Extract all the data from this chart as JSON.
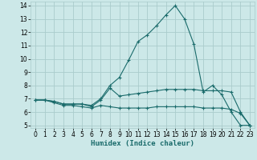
{
  "xlabel": "Humidex (Indice chaleur)",
  "bg_color": "#cce8e8",
  "grid_color": "#aacccc",
  "line_color": "#1a6b6b",
  "xlim": [
    -0.5,
    23.5
  ],
  "ylim": [
    4.8,
    14.3
  ],
  "xticks": [
    0,
    1,
    2,
    3,
    4,
    5,
    6,
    7,
    8,
    9,
    10,
    11,
    12,
    13,
    14,
    15,
    16,
    17,
    18,
    19,
    20,
    21,
    22,
    23
  ],
  "yticks": [
    5,
    6,
    7,
    8,
    9,
    10,
    11,
    12,
    13,
    14
  ],
  "line1_x": [
    0,
    1,
    2,
    3,
    4,
    5,
    6,
    7,
    8,
    9,
    10,
    11,
    12,
    13,
    14,
    15,
    16,
    17,
    18,
    19,
    20,
    21,
    22,
    23
  ],
  "line1_y": [
    6.9,
    6.9,
    6.8,
    6.6,
    6.6,
    6.6,
    6.5,
    7.0,
    8.0,
    8.6,
    9.9,
    11.3,
    11.8,
    12.5,
    13.3,
    14.0,
    13.0,
    11.1,
    7.5,
    8.0,
    7.3,
    6.0,
    5.0,
    5.0
  ],
  "line2_x": [
    0,
    1,
    2,
    3,
    4,
    5,
    6,
    7,
    8,
    9,
    10,
    11,
    12,
    13,
    14,
    15,
    16,
    17,
    18,
    19,
    20,
    21,
    22,
    23
  ],
  "line2_y": [
    6.9,
    6.9,
    6.8,
    6.6,
    6.6,
    6.6,
    6.4,
    6.9,
    7.8,
    7.2,
    7.3,
    7.4,
    7.5,
    7.6,
    7.7,
    7.7,
    7.7,
    7.7,
    7.6,
    7.6,
    7.6,
    7.5,
    6.0,
    5.0
  ],
  "line3_x": [
    0,
    1,
    2,
    3,
    4,
    5,
    6,
    7,
    8,
    9,
    10,
    11,
    12,
    13,
    14,
    15,
    16,
    17,
    18,
    19,
    20,
    21,
    22,
    23
  ],
  "line3_y": [
    6.9,
    6.9,
    6.7,
    6.5,
    6.5,
    6.4,
    6.3,
    6.5,
    6.4,
    6.3,
    6.3,
    6.3,
    6.3,
    6.4,
    6.4,
    6.4,
    6.4,
    6.4,
    6.3,
    6.3,
    6.3,
    6.2,
    5.9,
    5.0
  ],
  "marker": "+",
  "markersize": 3.5,
  "linewidth": 0.8,
  "tick_fontsize": 5.5,
  "xlabel_fontsize": 6.5
}
